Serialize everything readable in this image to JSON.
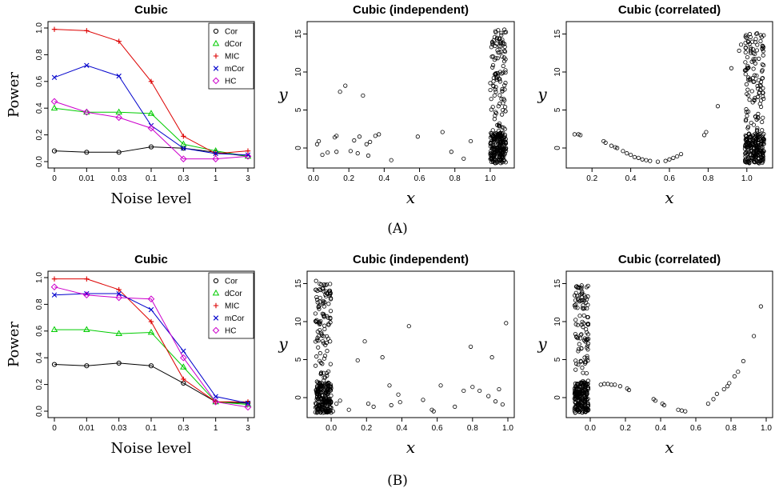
{
  "panel_labels": [
    "(A)",
    "(B)"
  ],
  "chart_data": [
    {
      "id": "A1",
      "type": "line",
      "title": "Cubic",
      "xlabel": "Noise level",
      "ylabel": "Power",
      "categories": [
        "0",
        "0.01",
        "0.03",
        "0.1",
        "0.3",
        "1",
        "3"
      ],
      "ylim": [
        0,
        1
      ],
      "yticks": [
        "0.0",
        "0.2",
        "0.4",
        "0.6",
        "0.8",
        "1.0"
      ],
      "legend_position": "top-right",
      "series": [
        {
          "name": "Cor",
          "marker": "circle",
          "color": "#000000",
          "values": [
            0.08,
            0.07,
            0.07,
            0.11,
            0.1,
            0.07,
            0.04
          ]
        },
        {
          "name": "dCor",
          "marker": "triangle",
          "color": "#00cc00",
          "values": [
            0.4,
            0.37,
            0.37,
            0.36,
            0.13,
            0.08,
            0.04
          ]
        },
        {
          "name": "MIC",
          "marker": "plus",
          "color": "#dd0000",
          "values": [
            0.99,
            0.98,
            0.9,
            0.6,
            0.19,
            0.06,
            0.08
          ]
        },
        {
          "name": "mCor",
          "marker": "cross",
          "color": "#0000cc",
          "values": [
            0.63,
            0.72,
            0.64,
            0.27,
            0.1,
            0.06,
            0.05
          ]
        },
        {
          "name": "HC",
          "marker": "diamond",
          "color": "#cc00cc",
          "values": [
            0.45,
            0.37,
            0.33,
            0.25,
            0.02,
            0.02,
            0.04
          ]
        }
      ]
    },
    {
      "id": "A2",
      "type": "scatter",
      "title": "Cubic (independent)",
      "xlabel": "x",
      "ylabel": "y",
      "xlim": [
        0,
        1.1
      ],
      "ylim": [
        -2,
        16
      ],
      "xticks": [
        "0.0",
        "0.2",
        "0.4",
        "0.6",
        "0.8",
        "1.0"
      ],
      "yticks": [
        "0",
        "5",
        "10",
        "15"
      ],
      "points": [
        [
          0.02,
          0.5
        ],
        [
          0.03,
          0.9
        ],
        [
          0.05,
          -0.9
        ],
        [
          0.08,
          -0.6
        ],
        [
          0.12,
          1.4
        ],
        [
          0.13,
          1.6
        ],
        [
          0.13,
          -0.5
        ],
        [
          0.15,
          7.4
        ],
        [
          0.18,
          8.2
        ],
        [
          0.21,
          -0.4
        ],
        [
          0.23,
          1.0
        ],
        [
          0.25,
          -0.7
        ],
        [
          0.26,
          1.5
        ],
        [
          0.28,
          6.9
        ],
        [
          0.3,
          0.5
        ],
        [
          0.31,
          -1.0
        ],
        [
          0.32,
          0.8
        ],
        [
          0.35,
          1.6
        ],
        [
          0.37,
          1.8
        ],
        [
          0.44,
          -1.6
        ],
        [
          0.59,
          1.5
        ],
        [
          0.73,
          2.1
        ],
        [
          0.78,
          -0.5
        ],
        [
          0.85,
          -1.4
        ],
        [
          0.89,
          0.9
        ]
      ],
      "cluster": {
        "x_range": [
          1.0,
          1.09
        ],
        "dense_y_range": [
          -2,
          2
        ],
        "tail_y_range": [
          2,
          15.6
        ],
        "dense_count": 200,
        "tail_count": 110
      }
    },
    {
      "id": "A3",
      "type": "scatter",
      "title": "Cubic (correlated)",
      "xlabel": "x",
      "ylabel": "y",
      "xlim": [
        0.1,
        1.1
      ],
      "ylim": [
        -2,
        16
      ],
      "xticks": [
        "0.2",
        "0.4",
        "0.6",
        "0.8",
        "1.0"
      ],
      "yticks": [
        "0",
        "5",
        "10",
        "15"
      ],
      "points": [
        [
          0.11,
          1.8
        ],
        [
          0.13,
          1.8
        ],
        [
          0.14,
          1.7
        ],
        [
          0.26,
          0.9
        ],
        [
          0.27,
          0.7
        ],
        [
          0.3,
          0.3
        ],
        [
          0.32,
          0.1
        ],
        [
          0.33,
          0.0
        ],
        [
          0.36,
          -0.4
        ],
        [
          0.38,
          -0.7
        ],
        [
          0.4,
          -0.9
        ],
        [
          0.42,
          -1.2
        ],
        [
          0.44,
          -1.3
        ],
        [
          0.46,
          -1.5
        ],
        [
          0.48,
          -1.6
        ],
        [
          0.5,
          -1.7
        ],
        [
          0.54,
          -1.8
        ],
        [
          0.58,
          -1.7
        ],
        [
          0.6,
          -1.5
        ],
        [
          0.62,
          -1.3
        ],
        [
          0.64,
          -1.1
        ],
        [
          0.66,
          -0.8
        ],
        [
          0.78,
          1.7
        ],
        [
          0.79,
          2.1
        ],
        [
          0.85,
          5.5
        ],
        [
          0.92,
          10.5
        ],
        [
          0.96,
          12.8
        ],
        [
          0.97,
          13.6
        ]
      ],
      "cluster": {
        "x_range": [
          0.99,
          1.09
        ],
        "dense_y_range": [
          -2,
          2
        ],
        "tail_y_range": [
          2,
          15.4
        ],
        "dense_count": 200,
        "tail_count": 120
      }
    },
    {
      "id": "B1",
      "type": "line",
      "title": "Cubic",
      "xlabel": "Noise level",
      "ylabel": "Power",
      "categories": [
        "0",
        "0.01",
        "0.03",
        "0.1",
        "0.3",
        "1",
        "3"
      ],
      "ylim": [
        0,
        1
      ],
      "yticks": [
        "0.0",
        "0.2",
        "0.4",
        "0.6",
        "0.8",
        "1.0"
      ],
      "legend_position": "top-right",
      "series": [
        {
          "name": "Cor",
          "marker": "circle",
          "color": "#000000",
          "values": [
            0.35,
            0.34,
            0.36,
            0.34,
            0.21,
            0.07,
            0.06
          ]
        },
        {
          "name": "dCor",
          "marker": "triangle",
          "color": "#00cc00",
          "values": [
            0.61,
            0.61,
            0.58,
            0.59,
            0.33,
            0.07,
            0.05
          ]
        },
        {
          "name": "MIC",
          "marker": "plus",
          "color": "#dd0000",
          "values": [
            0.99,
            0.99,
            0.91,
            0.67,
            0.24,
            0.07,
            0.07
          ]
        },
        {
          "name": "mCor",
          "marker": "cross",
          "color": "#0000cc",
          "values": [
            0.87,
            0.88,
            0.88,
            0.76,
            0.45,
            0.11,
            0.06
          ]
        },
        {
          "name": "HC",
          "marker": "diamond",
          "color": "#cc00cc",
          "values": [
            0.93,
            0.87,
            0.85,
            0.84,
            0.4,
            0.07,
            0.03
          ]
        }
      ]
    },
    {
      "id": "B2",
      "type": "scatter",
      "title": "Cubic (independent)",
      "xlabel": "x",
      "ylabel": "y",
      "xlim": [
        -0.1,
        1.0
      ],
      "ylim": [
        -2,
        16
      ],
      "xticks": [
        "0.0",
        "0.2",
        "0.4",
        "0.6",
        "0.8",
        "1.0"
      ],
      "yticks": [
        "0",
        "5",
        "10",
        "15"
      ],
      "points": [
        [
          0.01,
          -1.8
        ],
        [
          0.03,
          -0.8
        ],
        [
          0.05,
          -0.4
        ],
        [
          0.1,
          -1.6
        ],
        [
          0.15,
          4.9
        ],
        [
          0.19,
          7.4
        ],
        [
          0.21,
          -0.8
        ],
        [
          0.24,
          -1.2
        ],
        [
          0.29,
          5.3
        ],
        [
          0.33,
          1.6
        ],
        [
          0.34,
          -1.0
        ],
        [
          0.38,
          0.4
        ],
        [
          0.39,
          -0.6
        ],
        [
          0.44,
          9.4
        ],
        [
          0.52,
          -0.3
        ],
        [
          0.57,
          -1.6
        ],
        [
          0.58,
          -1.8
        ],
        [
          0.62,
          1.6
        ],
        [
          0.7,
          -1.2
        ],
        [
          0.75,
          0.9
        ],
        [
          0.79,
          6.7
        ],
        [
          0.8,
          1.4
        ],
        [
          0.84,
          0.9
        ],
        [
          0.89,
          0.2
        ],
        [
          0.91,
          5.3
        ],
        [
          0.93,
          -0.5
        ],
        [
          0.95,
          1.1
        ],
        [
          0.97,
          -0.9
        ],
        [
          0.99,
          9.8
        ]
      ],
      "cluster": {
        "x_range": [
          -0.09,
          0.0
        ],
        "dense_y_range": [
          -2,
          2
        ],
        "tail_y_range": [
          2,
          15.5
        ],
        "dense_count": 200,
        "tail_count": 110
      }
    },
    {
      "id": "B3",
      "type": "scatter",
      "title": "Cubic (correlated)",
      "xlabel": "x",
      "ylabel": "y",
      "xlim": [
        -0.1,
        1.0
      ],
      "ylim": [
        -2,
        16
      ],
      "xticks": [
        "0.0",
        "0.2",
        "0.4",
        "0.6",
        "0.8",
        "1.0"
      ],
      "yticks": [
        "0",
        "5",
        "10",
        "15"
      ],
      "points": [
        [
          0.06,
          1.7
        ],
        [
          0.08,
          1.8
        ],
        [
          0.1,
          1.8
        ],
        [
          0.12,
          1.7
        ],
        [
          0.14,
          1.7
        ],
        [
          0.17,
          1.5
        ],
        [
          0.21,
          1.2
        ],
        [
          0.22,
          1.0
        ],
        [
          0.36,
          -0.2
        ],
        [
          0.37,
          -0.4
        ],
        [
          0.41,
          -0.8
        ],
        [
          0.42,
          -1.0
        ],
        [
          0.5,
          -1.6
        ],
        [
          0.52,
          -1.7
        ],
        [
          0.54,
          -1.8
        ],
        [
          0.67,
          -0.8
        ],
        [
          0.7,
          -0.2
        ],
        [
          0.72,
          0.5
        ],
        [
          0.76,
          1.1
        ],
        [
          0.78,
          1.5
        ],
        [
          0.79,
          1.9
        ],
        [
          0.82,
          2.8
        ],
        [
          0.84,
          3.4
        ],
        [
          0.87,
          4.8
        ],
        [
          0.93,
          8.1
        ],
        [
          0.97,
          12.0
        ]
      ],
      "cluster": {
        "x_range": [
          -0.09,
          -0.01
        ],
        "dense_y_range": [
          -2,
          2
        ],
        "tail_y_range": [
          2,
          14.8
        ],
        "dense_count": 200,
        "tail_count": 100
      }
    }
  ]
}
